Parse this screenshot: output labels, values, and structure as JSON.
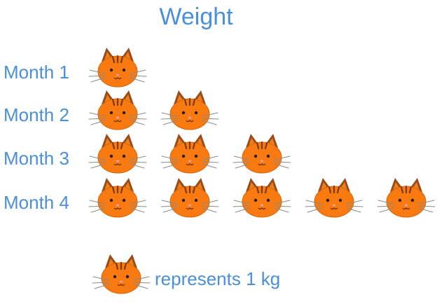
{
  "chart_data": {
    "type": "pictograph",
    "title": "Weight",
    "categories": [
      "Month 1",
      "Month 2",
      "Month 3",
      "Month 4"
    ],
    "values": [
      1,
      2,
      3,
      5
    ],
    "unit": "kg",
    "icon": "cat-face-icon",
    "key": {
      "icon": "cat-face-icon",
      "text": "represents 1 kg",
      "value": 1
    }
  },
  "colors": {
    "label_text": "#4a90d9",
    "cat_face": "#f97a10",
    "cat_outline": "#c45a08",
    "cat_ears": "#9c4a18",
    "cat_stripes": "#7a3a12",
    "whiskers": "#8a8a8a",
    "nose": "#f2a0b0"
  }
}
